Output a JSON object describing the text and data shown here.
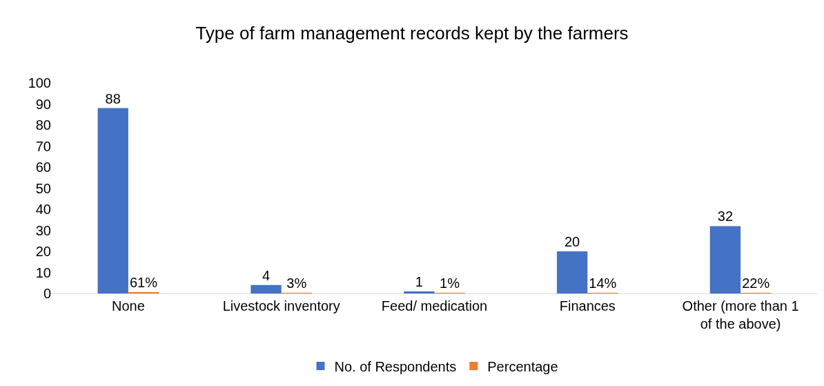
{
  "chart_data": {
    "type": "bar",
    "title": "Type of farm management records kept by the farmers",
    "categories": [
      "None",
      "Livestock inventory",
      "Feed/ medication",
      "Finances",
      "Other (more than 1 of the above)"
    ],
    "series": [
      {
        "name": "No. of Respondents",
        "color": "#4472c4",
        "values": [
          88,
          4,
          1,
          20,
          32
        ],
        "value_labels": [
          "88",
          "4",
          "1",
          "20",
          "32"
        ]
      },
      {
        "name": "Percentage",
        "color": "#ed7d31",
        "values": [
          0.61,
          0.03,
          0.01,
          0.14,
          0.22
        ],
        "value_labels": [
          "61%",
          "3%",
          "1%",
          "14%",
          "22%"
        ]
      }
    ],
    "ylim": [
      0,
      100
    ],
    "yticks": [
      0,
      10,
      20,
      30,
      40,
      50,
      60,
      70,
      80,
      90,
      100
    ],
    "grid": false,
    "legend": "bottom"
  }
}
